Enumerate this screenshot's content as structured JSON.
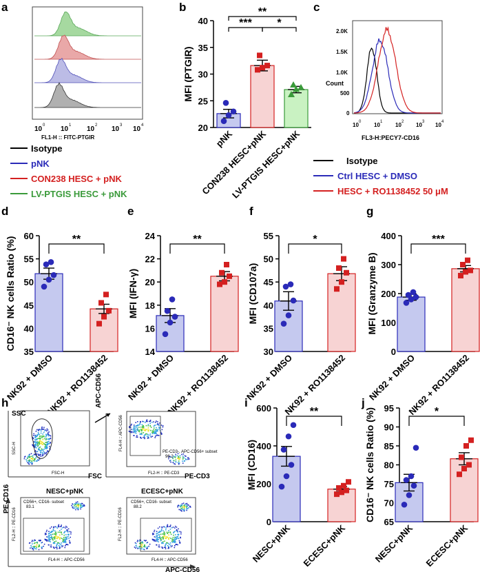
{
  "panel_labels": {
    "a": "a",
    "b": "b",
    "c": "c",
    "d": "d",
    "e": "e",
    "f": "f",
    "g": "g",
    "h": "h",
    "i": "i",
    "j": "j"
  },
  "colors": {
    "black": "#000000",
    "blue": "#2a2ab8",
    "red": "#d42020",
    "green": "#3a9a3a",
    "bar_blue": "#c5c9ef",
    "bar_pink": "#f7d3d3",
    "bar_green": "#c9f2c2",
    "hist_gray": "#b0b0b0",
    "hist_blue": "#bcbce6",
    "hist_red": "#e9a8a8",
    "hist_green": "#a6d9a0"
  },
  "panel_a": {
    "xlabel": "FL1-H :: FITC-PTGIR",
    "xticks": [
      "10",
      "10",
      "10",
      "10",
      "10"
    ],
    "xexp": [
      "0",
      "1",
      "2",
      "3",
      "4"
    ],
    "legend": [
      {
        "label": "Isotype",
        "color": "black"
      },
      {
        "label": "pNK",
        "color": "blue"
      },
      {
        "label": "CON238 HESC + pNK",
        "color": "red"
      },
      {
        "label": "LV-PTGIS HESC + pNK",
        "color": "green"
      }
    ]
  },
  "panel_c": {
    "ylabel": "Count",
    "xlabel": "FL3-H:PECY7-CD16",
    "yticks": [
      "0",
      "500",
      "1.0K",
      "1.5K",
      "2.0K"
    ],
    "xticks": [
      "10",
      "10",
      "10",
      "10",
      "10"
    ],
    "xexp": [
      "0",
      "1",
      "2",
      "3",
      "4"
    ],
    "legend": [
      {
        "label": "Isotype",
        "color": "black"
      },
      {
        "label": "Ctrl HESC + DMSO",
        "color": "blue"
      },
      {
        "label": "HESC + RO1138452 50 μM",
        "color": "red"
      }
    ]
  },
  "panel_h": {
    "ssc": "SSC",
    "fsc": "FSC",
    "apc_cd56_top": "APC-CD56",
    "pe_cd3": "PE-CD3",
    "pe_cd16": "PE-CD16",
    "apc_cd56_bottom": "APC-CD56",
    "nesc": "NESC+pNK",
    "ecesc": "ECESC+pNK",
    "gate_top": "CD56+, CD16- subset",
    "nesc_pct": "83.1",
    "ecesc_pct": "88.2",
    "gate_cd3": "PE-CD3-, APC-CD56+ subset",
    "gate_cd3_pct": "96.2",
    "ax_ssc": "SSC-H",
    "ax_fsc": "FSC-H",
    "ax_apc": "FL4-H :: APC-CD56",
    "ax_pe3": "FL2-H :: PE-CD3",
    "ax_pe16": "FL2-H :: PE-CD16",
    "ax_apc2": "FL4-H :: APC-CD56",
    "scatter_ticks": [
      "0",
      "200",
      "400",
      "600",
      "800",
      "1000"
    ]
  },
  "chart_data": [
    {
      "id": "b",
      "type": "bar",
      "ylabel": "MFI (PTGIR)",
      "ylim": [
        20,
        40
      ],
      "yticks": [
        20,
        25,
        30,
        35,
        40
      ],
      "categories": [
        "pNK",
        "CON238 HESC+pNK",
        "LV-PTGIS HESC+pNK"
      ],
      "values": [
        22.6,
        31.6,
        27.1
      ],
      "errors": [
        0.8,
        1.0,
        0.6
      ],
      "points": [
        [
          21.2,
          22.3,
          23.0,
          24.6
        ],
        [
          30.8,
          31.2,
          31.6,
          33.5
        ],
        [
          26.2,
          27.2,
          27.5,
          28.0
        ]
      ],
      "colors": [
        "blue",
        "red",
        "green"
      ],
      "fills": [
        "bar_blue",
        "bar_pink",
        "bar_green"
      ],
      "markers": [
        "circle",
        "square",
        "triangle"
      ],
      "sig": [
        {
          "from": 0,
          "to": 1,
          "label": "***"
        },
        {
          "from": 1,
          "to": 2,
          "label": "*"
        },
        {
          "from": 0,
          "to": 2,
          "label": "**"
        }
      ]
    },
    {
      "id": "d",
      "type": "bar",
      "ylabel": "CD16⁻ NK cells Ratio (%)",
      "ylim": [
        35,
        60
      ],
      "yticks": [
        35,
        40,
        45,
        50,
        55,
        60
      ],
      "categories": [
        "NK92 + DMSO",
        "NK92 + RO1138452"
      ],
      "values": [
        51.8,
        44.2
      ],
      "errors": [
        1.2,
        1.0
      ],
      "points": [
        [
          49.0,
          50.5,
          51.5,
          53.8,
          54.3
        ],
        [
          41.0,
          42.5,
          43.8,
          45.5,
          47.3
        ]
      ],
      "sig": [
        {
          "from": 0,
          "to": 1,
          "label": "**"
        }
      ]
    },
    {
      "id": "e",
      "type": "bar",
      "ylabel": "MFI (IFN-γ)",
      "ylim": [
        14,
        24
      ],
      "yticks": [
        14,
        16,
        18,
        20,
        22,
        24
      ],
      "categories": [
        "NK92 + DMSO",
        "NK92 + RO1138452"
      ],
      "values": [
        17.1,
        20.5
      ],
      "errors": [
        0.6,
        0.4
      ],
      "points": [
        [
          15.5,
          16.5,
          17.0,
          17.5,
          18.5
        ],
        [
          19.8,
          20.0,
          20.5,
          20.8,
          21.5
        ]
      ],
      "sig": [
        {
          "from": 0,
          "to": 1,
          "label": "**"
        }
      ]
    },
    {
      "id": "f",
      "type": "bar",
      "ylabel": "MFI (CD107a)",
      "ylim": [
        30,
        55
      ],
      "yticks": [
        30,
        35,
        40,
        45,
        50,
        55
      ],
      "categories": [
        "NK92 + DMSO",
        "NK92 + RO1138452"
      ],
      "values": [
        40.9,
        46.8
      ],
      "errors": [
        2.0,
        1.5
      ],
      "points": [
        [
          36.0,
          37.8,
          41.0,
          44.0,
          44.5
        ],
        [
          43.5,
          45.0,
          47.0,
          48.0,
          50.0
        ]
      ],
      "sig": [
        {
          "from": 0,
          "to": 1,
          "label": "*"
        }
      ]
    },
    {
      "id": "g",
      "type": "bar",
      "ylabel": "MFI (Granzyme B)",
      "ylim": [
        0,
        400
      ],
      "yticks": [
        0,
        100,
        200,
        300,
        400
      ],
      "categories": [
        "NK92 + DMSO",
        "NK92 + RO1138452"
      ],
      "values": [
        188,
        286
      ],
      "errors": [
        11,
        11
      ],
      "points": [
        [
          168,
          180,
          188,
          195,
          205
        ],
        [
          262,
          275,
          280,
          300,
          315
        ]
      ],
      "sig": [
        {
          "from": 0,
          "to": 1,
          "label": "***"
        }
      ]
    },
    {
      "id": "i",
      "type": "bar",
      "ylabel": "MFI (CD16)",
      "ylim": [
        0,
        600
      ],
      "yticks": [
        0,
        200,
        400,
        600
      ],
      "categories": [
        "NESC+pNK",
        "ECESC+pNK"
      ],
      "values": [
        345,
        172
      ],
      "errors": [
        52,
        13
      ],
      "points": [
        [
          185,
          240,
          300,
          380,
          450,
          510
        ],
        [
          145,
          155,
          165,
          178,
          190,
          210
        ]
      ],
      "sig": [
        {
          "from": 0,
          "to": 1,
          "label": "**"
        }
      ]
    },
    {
      "id": "j",
      "type": "bar",
      "ylabel": "CD16⁻ NK cells Ratio (%)",
      "ylim": [
        65,
        95
      ],
      "yticks": [
        65,
        70,
        75,
        80,
        85,
        90,
        95
      ],
      "categories": [
        "NESC+pNK",
        "ECESC+pNK"
      ],
      "values": [
        75.3,
        81.6
      ],
      "errors": [
        2.2,
        1.6
      ],
      "points": [
        [
          69.5,
          72.0,
          74.5,
          76.0,
          77.0,
          84.5
        ],
        [
          77.5,
          79.0,
          80.0,
          82.0,
          85.0,
          86.5
        ]
      ],
      "sig": [
        {
          "from": 0,
          "to": 1,
          "label": "*"
        }
      ]
    }
  ]
}
